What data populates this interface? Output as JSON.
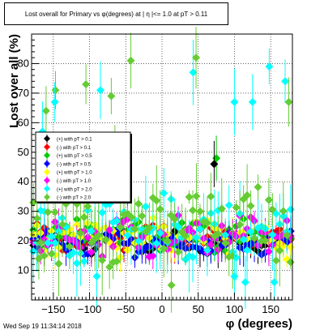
{
  "chart_data": {
    "type": "scatter",
    "title": "Lost overall for Primary vs φ(degrees) at | η |<= 1.0 at pT > 0.11",
    "xlabel": "φ (degrees)",
    "ylabel": "Lost over all (%)",
    "xlim": [
      -180,
      180
    ],
    "ylim": [
      0,
      90
    ],
    "xticks": [
      -150,
      -100,
      -50,
      0,
      50,
      100,
      150
    ],
    "yticks": [
      10,
      20,
      30,
      40,
      50,
      60,
      70,
      80
    ],
    "grid": true,
    "legend_position": "inside-left",
    "series": [
      {
        "name": "(+) with pT > 0.1",
        "color": "#000000",
        "marker": "diamond",
        "base": 20,
        "amp": 2.5,
        "spread": 3
      },
      {
        "name": "(-) with pT > 0.1",
        "color": "#ff0000",
        "marker": "diamond",
        "base": 21,
        "amp": 2,
        "spread": 3
      },
      {
        "name": "(+) with pT > 0.5",
        "color": "#00cc00",
        "marker": "diamond",
        "base": 22,
        "amp": 2.5,
        "spread": 4
      },
      {
        "name": "(-) with pT > 0.5",
        "color": "#0000ff",
        "marker": "diamond",
        "base": 19,
        "amp": 2,
        "spread": 3
      },
      {
        "name": "(+) with pT > 1.0",
        "color": "#ffff00",
        "marker": "diamond",
        "base": 21,
        "amp": 3,
        "spread": 5
      },
      {
        "name": "(-) with pT > 1.0",
        "color": "#ff00ff",
        "marker": "diamond",
        "base": 22,
        "amp": 3,
        "spread": 5
      },
      {
        "name": "(+) with pT > 2.0",
        "color": "#00ffff",
        "marker": "diamond",
        "base": 24,
        "amp": 4,
        "spread": 9
      },
      {
        "name": "(-) with pT > 2.0",
        "color": "#66cc33",
        "marker": "diamond",
        "base": 25,
        "amp": 4,
        "spread": 10
      }
    ],
    "outliers": [
      {
        "series": 7,
        "x": -147,
        "y": 71
      },
      {
        "series": 6,
        "x": -148,
        "y": 67
      },
      {
        "series": 7,
        "x": -160,
        "y": 64
      },
      {
        "series": 6,
        "x": -165,
        "y": 57
      },
      {
        "series": 7,
        "x": -105,
        "y": 73
      },
      {
        "series": 6,
        "x": -85,
        "y": 71
      },
      {
        "series": 7,
        "x": -70,
        "y": 69
      },
      {
        "series": 7,
        "x": -43,
        "y": 81
      },
      {
        "series": 6,
        "x": 43,
        "y": 77
      },
      {
        "series": 7,
        "x": 47,
        "y": 82
      },
      {
        "series": 6,
        "x": 125,
        "y": 67
      },
      {
        "series": 6,
        "x": 148,
        "y": 79
      },
      {
        "series": 6,
        "x": 170,
        "y": 74
      },
      {
        "series": 7,
        "x": 175,
        "y": 67
      },
      {
        "series": 6,
        "x": 100,
        "y": 67
      },
      {
        "series": 6,
        "x": -130,
        "y": 45
      },
      {
        "series": 7,
        "x": -65,
        "y": 49
      },
      {
        "series": 2,
        "x": 75,
        "y": 48
      },
      {
        "series": 0,
        "x": 72,
        "y": 46
      },
      {
        "series": 6,
        "x": 155,
        "y": 6
      },
      {
        "series": 6,
        "x": 115,
        "y": 6
      },
      {
        "series": 7,
        "x": 13,
        "y": 5
      },
      {
        "series": 6,
        "x": 100,
        "y": 8
      },
      {
        "series": 6,
        "x": -90,
        "y": 8
      },
      {
        "series": 7,
        "x": -170,
        "y": 14
      }
    ]
  },
  "footer": {
    "datestamp": "Wed Sep 19 11:34:14 2018"
  }
}
